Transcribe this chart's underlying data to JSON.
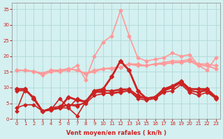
{
  "x": [
    0,
    1,
    2,
    3,
    4,
    5,
    6,
    7,
    8,
    9,
    10,
    11,
    12,
    13,
    14,
    15,
    16,
    17,
    18,
    19,
    20,
    21,
    22,
    23
  ],
  "series": [
    {
      "color": "#ff9999",
      "lw": 1.2,
      "marker": "D",
      "ms": 2.5,
      "y": [
        15.5,
        15.5,
        15.2,
        14.0,
        15.0,
        15.2,
        15.5,
        17.0,
        12.5,
        20.0,
        24.5,
        26.5,
        34.5,
        26.5,
        19.5,
        18.5,
        19.0,
        19.5,
        21.0,
        20.0,
        20.5,
        17.0,
        15.5,
        19.5
      ]
    },
    {
      "color": "#ff9999",
      "lw": 1.2,
      "marker": "D",
      "ms": 2.5,
      "y": [
        15.5,
        15.5,
        15.2,
        14.5,
        15.5,
        15.5,
        16.0,
        15.5,
        14.5,
        15.0,
        16.0,
        16.0,
        16.5,
        17.5,
        17.5,
        17.0,
        17.5,
        18.0,
        18.5,
        18.5,
        19.0,
        17.5,
        17.5,
        17.0
      ]
    },
    {
      "color": "#ff9999",
      "lw": 1.5,
      "marker": "D",
      "ms": 2.5,
      "y": [
        15.5,
        15.5,
        15.2,
        14.5,
        15.5,
        15.5,
        16.0,
        15.5,
        14.5,
        15.5,
        16.0,
        16.2,
        16.5,
        17.5,
        17.0,
        17.0,
        17.5,
        17.5,
        18.0,
        18.0,
        18.5,
        17.0,
        17.0,
        16.0
      ]
    },
    {
      "color": "#cc2222",
      "lw": 2.0,
      "marker": "D",
      "ms": 3.0,
      "y": [
        9.5,
        9.5,
        6.5,
        2.5,
        3.0,
        3.5,
        7.0,
        6.0,
        5.5,
        9.0,
        9.5,
        13.5,
        18.5,
        15.5,
        9.0,
        6.5,
        7.0,
        9.5,
        10.5,
        12.0,
        9.5,
        9.5,
        9.5,
        7.0
      ]
    },
    {
      "color": "#cc2222",
      "lw": 1.2,
      "marker": "D",
      "ms": 2.5,
      "y": [
        2.5,
        9.5,
        6.5,
        2.5,
        3.0,
        6.5,
        3.5,
        1.0,
        5.5,
        8.5,
        8.5,
        8.0,
        8.5,
        9.0,
        7.0,
        6.5,
        7.0,
        9.0,
        10.0,
        11.5,
        9.0,
        8.5,
        9.5,
        6.5
      ]
    },
    {
      "color": "#cc2222",
      "lw": 1.2,
      "marker": "D",
      "ms": 2.5,
      "y": [
        9.5,
        9.5,
        6.5,
        2.5,
        3.0,
        3.5,
        3.5,
        6.5,
        5.5,
        8.5,
        9.0,
        9.0,
        9.0,
        9.5,
        7.5,
        6.5,
        7.0,
        9.0,
        10.0,
        12.0,
        9.0,
        8.5,
        9.5,
        6.5
      ]
    },
    {
      "color": "#cc2222",
      "lw": 1.2,
      "marker": "D",
      "ms": 2.5,
      "y": [
        9.0,
        9.0,
        7.0,
        2.5,
        3.5,
        4.0,
        4.5,
        4.0,
        5.5,
        8.5,
        9.0,
        9.0,
        9.5,
        9.5,
        7.5,
        6.5,
        7.0,
        9.0,
        10.0,
        12.0,
        9.0,
        8.5,
        9.0,
        6.5
      ]
    },
    {
      "color": "#cc2222",
      "lw": 1.2,
      "marker": "D",
      "ms": 2.5,
      "y": [
        3.5,
        4.5,
        4.5,
        2.5,
        3.0,
        3.5,
        4.5,
        4.5,
        5.0,
        7.5,
        8.0,
        8.5,
        8.5,
        9.0,
        6.5,
        6.0,
        6.5,
        8.5,
        9.0,
        11.0,
        8.5,
        7.5,
        8.5,
        6.5
      ]
    }
  ],
  "xlim": [
    -0.5,
    23.5
  ],
  "ylim": [
    0,
    37
  ],
  "yticks": [
    0,
    5,
    10,
    15,
    20,
    25,
    30,
    35
  ],
  "xticks": [
    0,
    1,
    2,
    3,
    4,
    5,
    6,
    7,
    8,
    9,
    10,
    11,
    12,
    13,
    14,
    15,
    16,
    17,
    18,
    19,
    20,
    21,
    22,
    23
  ],
  "xlabel": "Vent moyen/en rafales ( kn/h )",
  "bg_color": "#d4f0f0",
  "grid_color": "#b0d8d8",
  "tick_color": "#cc2222",
  "label_color": "#cc2222",
  "figsize": [
    3.2,
    2.0
  ],
  "dpi": 100
}
